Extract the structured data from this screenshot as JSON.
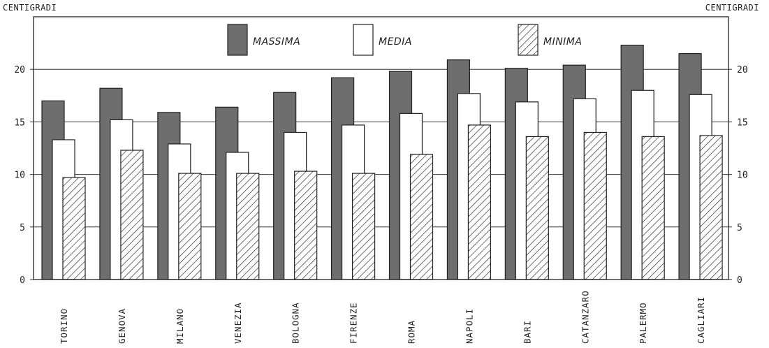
{
  "chart_data": {
    "type": "bar",
    "ylabel_left": "CENTIGRADI",
    "ylabel_right": "CENTIGRADI",
    "ylim": [
      0,
      25
    ],
    "yticks": [
      0,
      5,
      10,
      15,
      20
    ],
    "grid": true,
    "legend_position": "top",
    "categories": [
      "TORINO",
      "GENOVA",
      "MILANO",
      "VENEZIA",
      "BOLOGNA",
      "FIRENZE",
      "ROMA",
      "NAPOLI",
      "BARI",
      "CATANZARO",
      "PALERMO",
      "CAGLIARI"
    ],
    "series": [
      {
        "name": "MASSIMA",
        "style": "solid",
        "color": "#6e6e6e",
        "values": [
          17.0,
          18.2,
          15.9,
          16.4,
          17.8,
          19.2,
          19.8,
          20.9,
          20.1,
          20.4,
          22.3,
          21.5
        ]
      },
      {
        "name": "MEDIA",
        "style": "white",
        "color": "#ffffff",
        "values": [
          13.3,
          15.2,
          12.9,
          12.1,
          14.0,
          14.7,
          15.8,
          17.7,
          16.9,
          17.2,
          18.0,
          17.6
        ]
      },
      {
        "name": "MINIMA",
        "style": "hatched",
        "color": "#ffffff",
        "values": [
          9.7,
          12.3,
          10.1,
          10.1,
          10.3,
          10.1,
          11.9,
          14.7,
          13.6,
          14.0,
          13.6,
          13.7
        ]
      }
    ]
  }
}
